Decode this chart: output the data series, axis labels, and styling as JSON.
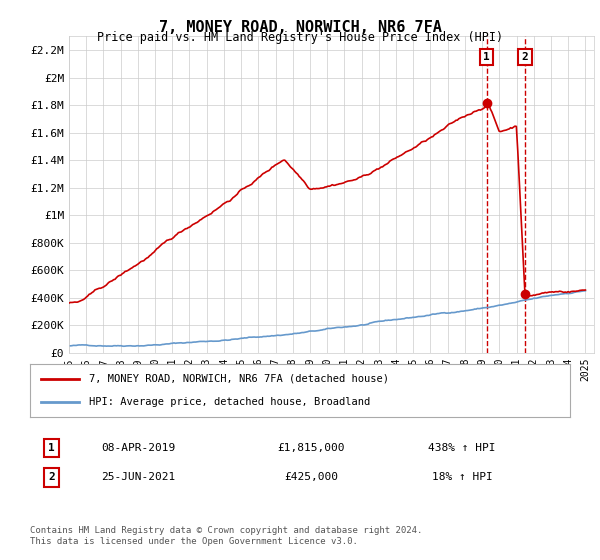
{
  "title": "7, MONEY ROAD, NORWICH, NR6 7FA",
  "subtitle": "Price paid vs. HM Land Registry's House Price Index (HPI)",
  "ylabel_ticks": [
    "£0",
    "£200K",
    "£400K",
    "£600K",
    "£800K",
    "£1M",
    "£1.2M",
    "£1.4M",
    "£1.6M",
    "£1.8M",
    "£2M",
    "£2.2M"
  ],
  "ytick_values": [
    0,
    200000,
    400000,
    600000,
    800000,
    1000000,
    1200000,
    1400000,
    1600000,
    1800000,
    2000000,
    2200000
  ],
  "ylim": [
    0,
    2300000
  ],
  "xlim_start": 1995.0,
  "xlim_end": 2025.5,
  "hpi_color": "#6699cc",
  "price_color": "#cc0000",
  "marker1_date": 2019.27,
  "marker1_value": 1815000,
  "marker2_date": 2021.48,
  "marker2_value": 425000,
  "legend_label1": "7, MONEY ROAD, NORWICH, NR6 7FA (detached house)",
  "legend_label2": "HPI: Average price, detached house, Broadland",
  "table_row1_num": "1",
  "table_row1_date": "08-APR-2019",
  "table_row1_price": "£1,815,000",
  "table_row1_hpi": "438% ↑ HPI",
  "table_row2_num": "2",
  "table_row2_date": "25-JUN-2021",
  "table_row2_price": "£425,000",
  "table_row2_hpi": "18% ↑ HPI",
  "footnote": "Contains HM Land Registry data © Crown copyright and database right 2024.\nThis data is licensed under the Open Government Licence v3.0.",
  "background_color": "#ffffff",
  "grid_color": "#cccccc",
  "vline_color": "#cc0000"
}
